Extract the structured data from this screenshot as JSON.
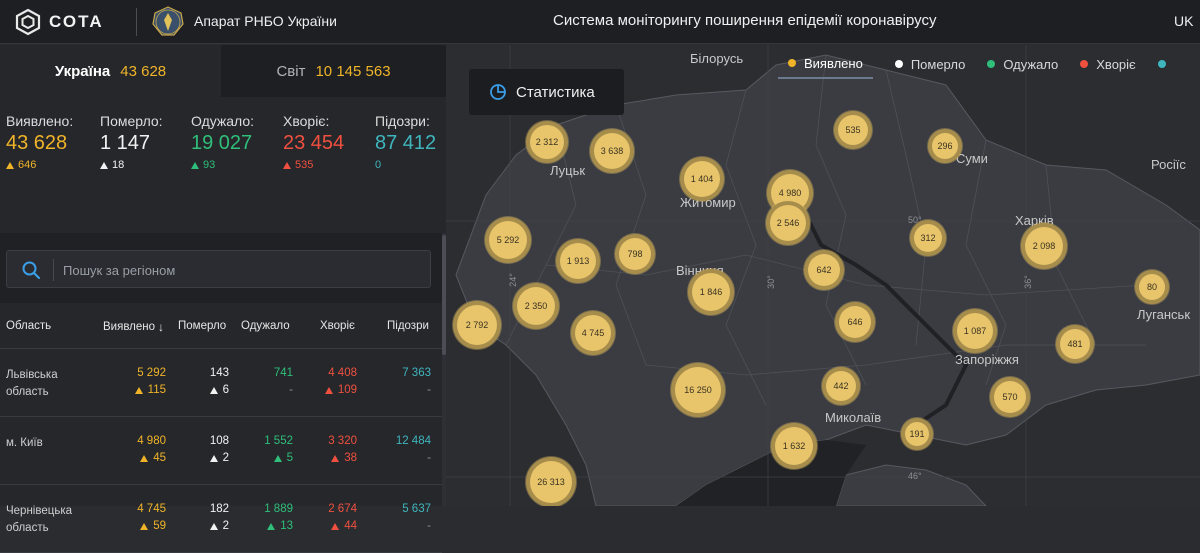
{
  "header": {
    "logo_text": "СОТА",
    "org_name": "Апарат РНБО України",
    "app_title": "Система моніторингу поширення епідемії коронавірусу",
    "language": "UK"
  },
  "scope_tabs": [
    {
      "name": "Україна",
      "value": "43 628"
    },
    {
      "name": "Світ",
      "value": "10 145 563"
    }
  ],
  "kpis": [
    {
      "label": "Виявлено:",
      "value": "43 628",
      "delta": "646",
      "color": "#f0b429"
    },
    {
      "label": "Померло:",
      "value": "1 147",
      "delta": "18",
      "color": "#f2f2f2"
    },
    {
      "label": "Одужало:",
      "value": "19 027",
      "delta": "93",
      "color": "#2fbf7a"
    },
    {
      "label": "Хворіє:",
      "value": "23 454",
      "delta": "535",
      "color": "#f0503f"
    },
    {
      "label": "Підозри:",
      "value": "87 412",
      "delta": "0",
      "color": "#3fb5bd"
    }
  ],
  "search": {
    "placeholder": "Пошук за регіоном"
  },
  "table": {
    "columns": [
      "Область",
      "Виявлено",
      "Померло",
      "Одужало",
      "Хворіє",
      "Підозри"
    ],
    "rows": [
      {
        "region": "Львівська область",
        "detected": "5 292",
        "detected_d": "115",
        "died": "143",
        "died_d": "6",
        "recovered": "741",
        "recovered_d": "-",
        "sick": "4 408",
        "sick_d": "109",
        "suspected": "7 363",
        "suspected_d": "-"
      },
      {
        "region": "м. Київ",
        "detected": "4 980",
        "detected_d": "45",
        "died": "108",
        "died_d": "2",
        "recovered": "1 552",
        "recovered_d": "5",
        "sick": "3 320",
        "sick_d": "38",
        "suspected": "12 484",
        "suspected_d": "-"
      },
      {
        "region": "Чернівецька область",
        "detected": "4 745",
        "detected_d": "59",
        "died": "182",
        "died_d": "2",
        "recovered": "1 889",
        "recovered_d": "13",
        "sick": "2 674",
        "sick_d": "44",
        "suspected": "5 637",
        "suspected_d": "-"
      }
    ]
  },
  "map": {
    "stat_button": "Статистика",
    "legend": [
      {
        "label": "Виявлено",
        "color": "#f0b429"
      },
      {
        "label": "Померло",
        "color": "#ffffff"
      },
      {
        "label": "Одужало",
        "color": "#2fbf7a"
      },
      {
        "label": "Хворіє",
        "color": "#f0503f"
      },
      {
        "label": ""
      }
    ],
    "places": [
      "Білорусь",
      "Луцьк",
      "Житомир",
      "Суми",
      "Росіїс",
      "Харків",
      "Вінниця",
      "Луганськ",
      "Запоріжжя",
      "Миколаїв"
    ],
    "grid_labels": [
      "50°",
      "24°",
      "30°",
      "36°",
      "46°"
    ],
    "bubbles": [
      "2 312",
      "3 638",
      "535",
      "296",
      "1 404",
      "4 980",
      "2 546",
      "5 292",
      "1 913",
      "798",
      "312",
      "2 098",
      "642",
      "80",
      "2 350",
      "1 846",
      "2 792",
      "4 745",
      "646",
      "1 087",
      "481",
      "16 250",
      "442",
      "570",
      "191",
      "1 632",
      "26 313"
    ]
  }
}
